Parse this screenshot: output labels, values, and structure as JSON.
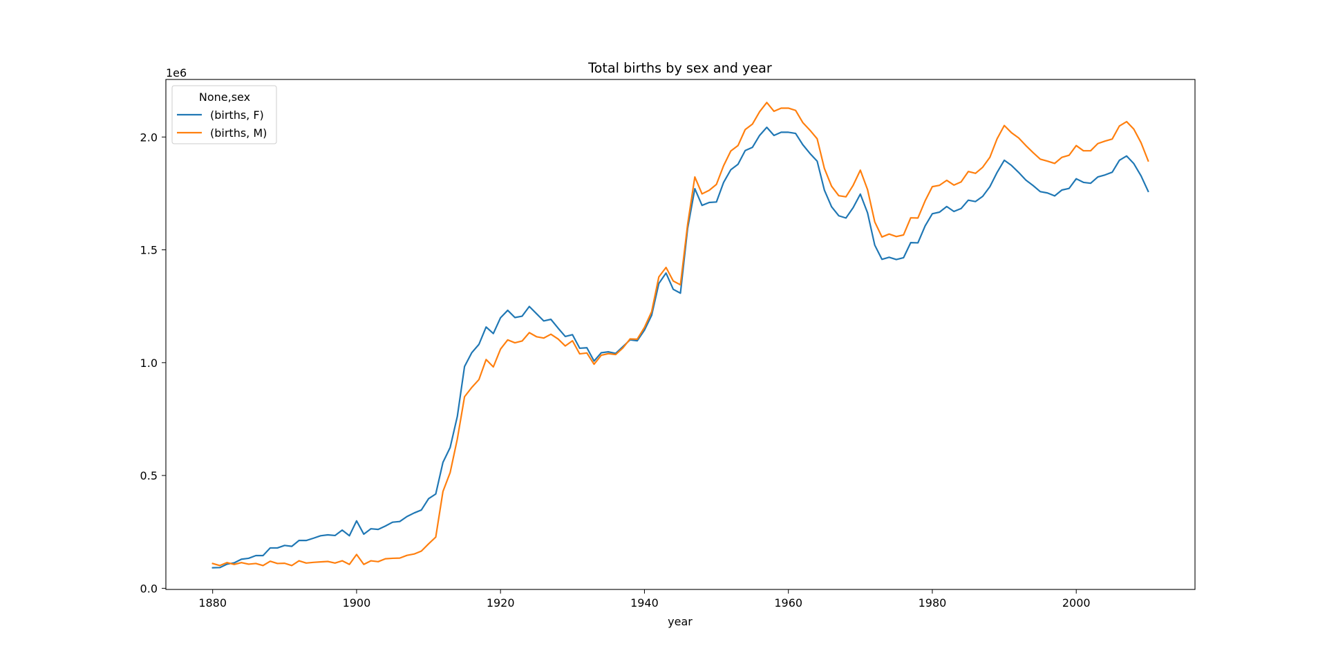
{
  "chart_data": {
    "type": "line",
    "title": "Total births by sex and year",
    "xlabel": "year",
    "ylabel": "",
    "y_offset_label": "1e6",
    "y_scale": 1000000,
    "xlim": [
      1873.5,
      2016.5
    ],
    "ylim": [
      -5000,
      2255000
    ],
    "xticks": [
      1880,
      1900,
      1920,
      1940,
      1960,
      1980,
      2000
    ],
    "yticks": [
      0,
      500000,
      1000000,
      1500000,
      2000000
    ],
    "ytick_labels": [
      "0.0",
      "0.5",
      "1.0",
      "1.5",
      "2.0"
    ],
    "legend": {
      "title": "None,sex",
      "position": "top-left"
    },
    "x_start": 1880,
    "series": [
      {
        "name": "(births, F)",
        "color": "#1f77b4",
        "values": [
          91000,
          92000,
          107000,
          113000,
          129000,
          133000,
          145000,
          145000,
          179000,
          179000,
          190000,
          186000,
          212000,
          212000,
          222000,
          233000,
          237000,
          234000,
          258000,
          233000,
          299000,
          240000,
          264000,
          261000,
          276000,
          293000,
          296000,
          318000,
          334000,
          347000,
          397000,
          418000,
          558000,
          624000,
          762000,
          983000,
          1044000,
          1081000,
          1158000,
          1129000,
          1199000,
          1232000,
          1200000,
          1206000,
          1249000,
          1217000,
          1185000,
          1192000,
          1153000,
          1116000,
          1124000,
          1064000,
          1066000,
          1007000,
          1044000,
          1048000,
          1041000,
          1071000,
          1101000,
          1097000,
          1144000,
          1210000,
          1351000,
          1397000,
          1325000,
          1308000,
          1595000,
          1771000,
          1697000,
          1710000,
          1712000,
          1799000,
          1855000,
          1879000,
          1940000,
          1954000,
          2007000,
          2043000,
          2007000,
          2021000,
          2021000,
          2016000,
          1966000,
          1927000,
          1893000,
          1765000,
          1691000,
          1651000,
          1641000,
          1687000,
          1747000,
          1664000,
          1521000,
          1458000,
          1467000,
          1457000,
          1465000,
          1532000,
          1531000,
          1606000,
          1660000,
          1667000,
          1692000,
          1670000,
          1683000,
          1720000,
          1714000,
          1737000,
          1780000,
          1843000,
          1897000,
          1874000,
          1843000,
          1809000,
          1785000,
          1758000,
          1752000,
          1739000,
          1765000,
          1772000,
          1815000,
          1799000,
          1795000,
          1823000,
          1832000,
          1844000,
          1897000,
          1916000,
          1882000,
          1828000,
          1759000
        ]
      },
      {
        "name": "(births, M)",
        "color": "#ff7f0e",
        "values": [
          110000,
          101000,
          114000,
          106000,
          114000,
          107000,
          110000,
          101000,
          120000,
          110000,
          111000,
          101000,
          122000,
          112000,
          115000,
          117000,
          119000,
          112000,
          122000,
          106000,
          150000,
          106000,
          122000,
          118000,
          131000,
          133000,
          134000,
          146000,
          152000,
          165000,
          197000,
          227000,
          429000,
          513000,
          662000,
          849000,
          890000,
          925000,
          1014000,
          981000,
          1060000,
          1101000,
          1088000,
          1096000,
          1133000,
          1115000,
          1109000,
          1126000,
          1105000,
          1074000,
          1097000,
          1039000,
          1043000,
          993000,
          1033000,
          1040000,
          1036000,
          1065000,
          1105000,
          1104000,
          1156000,
          1226000,
          1380000,
          1422000,
          1362000,
          1345000,
          1613000,
          1823000,
          1748000,
          1764000,
          1790000,
          1873000,
          1938000,
          1962000,
          2033000,
          2057000,
          2112000,
          2153000,
          2114000,
          2128000,
          2128000,
          2118000,
          2064000,
          2030000,
          1992000,
          1861000,
          1782000,
          1740000,
          1735000,
          1786000,
          1853000,
          1767000,
          1624000,
          1557000,
          1570000,
          1559000,
          1566000,
          1642000,
          1641000,
          1717000,
          1780000,
          1786000,
          1808000,
          1787000,
          1801000,
          1847000,
          1839000,
          1866000,
          1910000,
          1992000,
          2051000,
          2019000,
          1996000,
          1962000,
          1931000,
          1902000,
          1893000,
          1883000,
          1910000,
          1919000,
          1962000,
          1939000,
          1939000,
          1971000,
          1982000,
          1991000,
          2049000,
          2068000,
          2035000,
          1975000,
          1894000
        ]
      }
    ]
  }
}
